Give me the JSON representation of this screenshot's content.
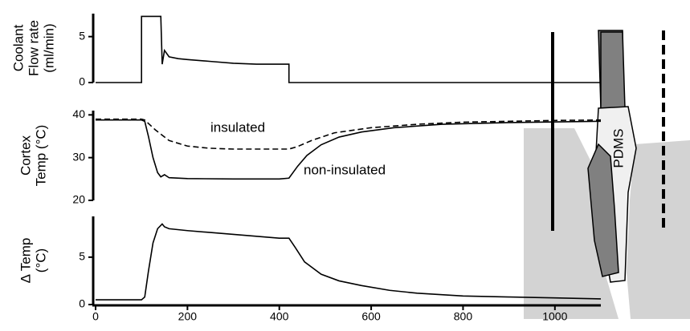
{
  "chart_data": [
    {
      "type": "line",
      "ylabel": [
        "Coolant",
        "Flow rate",
        "(ml/min)"
      ],
      "xlim": [
        0,
        1100
      ],
      "ylim": [
        0,
        7.5
      ],
      "yticks": [
        0,
        5
      ],
      "series": [
        {
          "color": "#000000",
          "dashed": false,
          "x": [
            0,
            100,
            100,
            142,
            145,
            150,
            160,
            180,
            200,
            250,
            300,
            350,
            400,
            421,
            421,
            1100
          ],
          "values": [
            0,
            0,
            7.2,
            7.2,
            2.0,
            3.5,
            2.8,
            2.6,
            2.5,
            2.3,
            2.1,
            2.0,
            2.0,
            2.0,
            0,
            0
          ]
        }
      ]
    },
    {
      "type": "line",
      "ylabel": [
        "Cortex",
        "Temp (°C)"
      ],
      "xlim": [
        0,
        1100
      ],
      "ylim": [
        20,
        41
      ],
      "yticks": [
        20,
        30,
        40
      ],
      "series": [
        {
          "name": "insulated",
          "color": "#000000",
          "dashed": true,
          "x": [
            0,
            100,
            107,
            130,
            160,
            200,
            247,
            300,
            350,
            421,
            440,
            470,
            520,
            600,
            700,
            800,
            900,
            1000,
            1100
          ],
          "values": [
            39,
            39,
            38.8,
            36.5,
            34,
            32.7,
            32.2,
            32,
            32,
            32,
            32.6,
            34,
            35.8,
            37,
            37.8,
            38.3,
            38.5,
            38.7,
            38.8
          ]
        },
        {
          "name": "non-insulated",
          "color": "#000000",
          "dashed": false,
          "x": [
            0,
            100,
            107,
            115,
            125,
            135,
            142,
            150,
            160,
            200,
            300,
            400,
            421,
            440,
            460,
            491,
            530,
            579,
            650,
            754,
            900,
            1100
          ],
          "values": [
            38.8,
            38.8,
            38.5,
            35,
            30,
            26.5,
            25.5,
            26,
            25.3,
            25.1,
            25,
            25,
            25.2,
            28,
            30.5,
            33,
            34.8,
            36,
            37,
            37.8,
            38.2,
            38.5
          ]
        }
      ]
    },
    {
      "type": "line",
      "ylabel": [
        "Δ Temp",
        "(°C)"
      ],
      "xlim": [
        0,
        1100
      ],
      "ylim": [
        0,
        9.3
      ],
      "yticks": [
        0,
        5
      ],
      "xticks": [
        0,
        200,
        400,
        600,
        800,
        1000
      ],
      "series": [
        {
          "color": "#000000",
          "dashed": false,
          "x": [
            0,
            100,
            107,
            115,
            125,
            135,
            145,
            150,
            160,
            200,
            250,
            300,
            350,
            400,
            421,
            435,
            455,
            491,
            530,
            579,
            640,
            700,
            800,
            900,
            1000,
            1100
          ],
          "values": [
            0.5,
            0.5,
            0.8,
            3.5,
            6.5,
            8.0,
            8.5,
            8.2,
            8.0,
            7.8,
            7.6,
            7.4,
            7.2,
            7.0,
            7.0,
            6.0,
            4.5,
            3.2,
            2.5,
            2.0,
            1.5,
            1.2,
            0.9,
            0.8,
            0.7,
            0.6
          ]
        }
      ]
    }
  ],
  "diagram": {
    "label": "PDMS"
  }
}
